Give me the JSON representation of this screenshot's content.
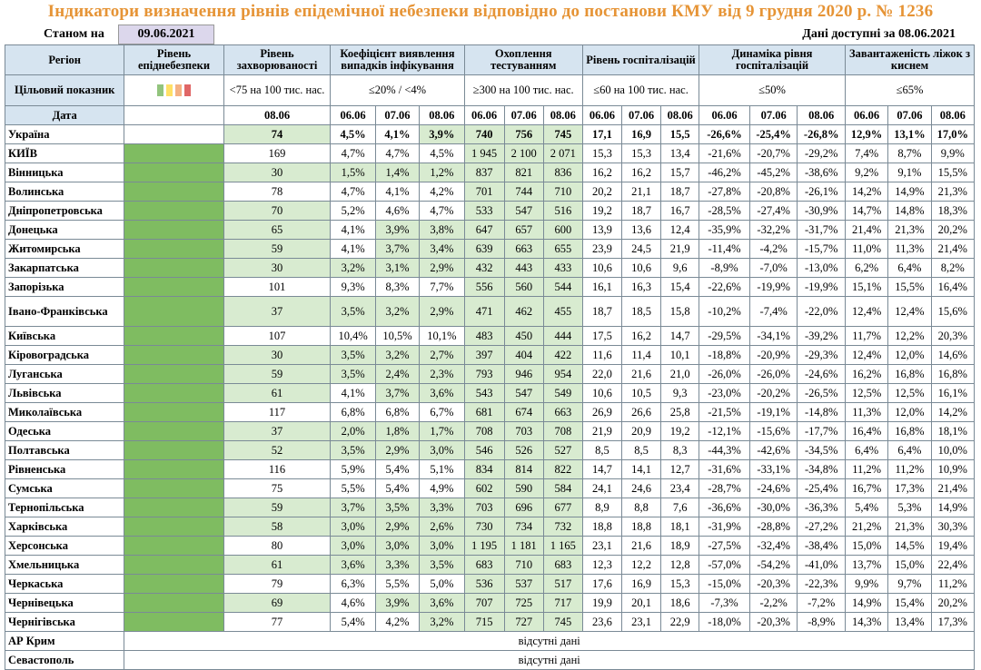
{
  "title": "Індикатори визначення рівнів епідемічної небезпеки відповідно до постанови КМУ від 9 грудня 2020 р. № 1236",
  "as_of": {
    "label": "Станом на",
    "date": "09.06.2021"
  },
  "data_available": {
    "label": "Дані доступні за",
    "date": "08.06.2021"
  },
  "headers": {
    "region": "Регіон",
    "danger_level": "Рівень епіднебезпеки",
    "incidence": "Рівень захворюваності",
    "detection": "Коефіцієнт виявлення випадків інфікування",
    "testing": "Охоплення тестуванням",
    "hospitalization": "Рівень госпіталізацій",
    "hosp_dynamics": "Динаміка рівня госпіталізацій",
    "oxygen": "Завантаженість ліжок з киснем"
  },
  "target_row": {
    "label": "Цільовий показник",
    "incidence": "<75 на 100 тис. нас.",
    "detection": "≤20% / <4%",
    "testing": "≥300 на 100 тис. нас.",
    "hospitalization": "≤60 на 100 тис. нас.",
    "hosp_dynamics": "≤50%",
    "oxygen": "≤65%",
    "swatch_colors": [
      "#92c47d",
      "#ffe066",
      "#f4b183",
      "#e06666"
    ]
  },
  "date_row": {
    "label": "Дата",
    "incidence": "08.06",
    "detection": [
      "06.06",
      "07.06",
      "08.06"
    ],
    "testing": [
      "06.06",
      "07.06",
      "08.06"
    ],
    "hospitalization": [
      "06.06",
      "07.06",
      "08.06"
    ],
    "hosp_dynamics": [
      "06.06",
      "07.06",
      "08.06"
    ],
    "oxygen": [
      "06.06",
      "07.06",
      "08.06"
    ]
  },
  "rows": [
    {
      "region": "Україна",
      "inc": "74",
      "det": [
        "4,5%",
        "4,1%",
        "3,9%"
      ],
      "test": [
        "740",
        "756",
        "745"
      ],
      "hosp": [
        "17,1",
        "16,9",
        "15,5"
      ],
      "dyn": [
        "-26,6%",
        "-25,4%",
        "-26,8%"
      ],
      "oxy": [
        "12,9%",
        "13,1%",
        "17,0%"
      ]
    },
    {
      "region": "КИЇВ",
      "inc": "169",
      "det": [
        "4,7%",
        "4,7%",
        "4,5%"
      ],
      "test": [
        "1 945",
        "2 100",
        "2 071"
      ],
      "hosp": [
        "15,3",
        "15,3",
        "13,4"
      ],
      "dyn": [
        "-21,6%",
        "-20,7%",
        "-29,2%"
      ],
      "oxy": [
        "7,4%",
        "8,7%",
        "9,9%"
      ]
    },
    {
      "region": "Вінницька",
      "inc": "30",
      "det": [
        "1,5%",
        "1,4%",
        "1,2%"
      ],
      "test": [
        "837",
        "821",
        "836"
      ],
      "hosp": [
        "16,2",
        "16,2",
        "15,7"
      ],
      "dyn": [
        "-46,2%",
        "-45,2%",
        "-38,6%"
      ],
      "oxy": [
        "9,2%",
        "9,1%",
        "15,5%"
      ]
    },
    {
      "region": "Волинська",
      "inc": "78",
      "det": [
        "4,7%",
        "4,1%",
        "4,2%"
      ],
      "test": [
        "701",
        "744",
        "710"
      ],
      "hosp": [
        "20,2",
        "21,1",
        "18,7"
      ],
      "dyn": [
        "-27,8%",
        "-20,8%",
        "-26,1%"
      ],
      "oxy": [
        "14,2%",
        "14,9%",
        "21,3%"
      ]
    },
    {
      "region": "Дніпропетровська",
      "inc": "70",
      "det": [
        "5,2%",
        "4,6%",
        "4,7%"
      ],
      "test": [
        "533",
        "547",
        "516"
      ],
      "hosp": [
        "19,2",
        "18,7",
        "16,7"
      ],
      "dyn": [
        "-28,5%",
        "-27,4%",
        "-30,9%"
      ],
      "oxy": [
        "14,7%",
        "14,8%",
        "18,3%"
      ]
    },
    {
      "region": "Донецька",
      "inc": "65",
      "det": [
        "4,1%",
        "3,9%",
        "3,8%"
      ],
      "test": [
        "647",
        "657",
        "600"
      ],
      "hosp": [
        "13,9",
        "13,6",
        "12,4"
      ],
      "dyn": [
        "-35,9%",
        "-32,2%",
        "-31,7%"
      ],
      "oxy": [
        "21,4%",
        "21,3%",
        "20,2%"
      ]
    },
    {
      "region": "Житомирська",
      "inc": "59",
      "det": [
        "4,1%",
        "3,7%",
        "3,4%"
      ],
      "test": [
        "639",
        "663",
        "655"
      ],
      "hosp": [
        "23,9",
        "24,5",
        "21,9"
      ],
      "dyn": [
        "-11,4%",
        "-4,2%",
        "-15,7%"
      ],
      "oxy": [
        "11,0%",
        "11,3%",
        "21,4%"
      ]
    },
    {
      "region": "Закарпатська",
      "inc": "30",
      "det": [
        "3,2%",
        "3,1%",
        "2,9%"
      ],
      "test": [
        "432",
        "443",
        "433"
      ],
      "hosp": [
        "10,6",
        "10,6",
        "9,6"
      ],
      "dyn": [
        "-8,9%",
        "-7,0%",
        "-13,0%"
      ],
      "oxy": [
        "6,2%",
        "6,4%",
        "8,2%"
      ]
    },
    {
      "region": "Запорізька",
      "inc": "101",
      "det": [
        "9,3%",
        "8,3%",
        "7,7%"
      ],
      "test": [
        "556",
        "560",
        "544"
      ],
      "hosp": [
        "16,1",
        "16,3",
        "15,4"
      ],
      "dyn": [
        "-22,6%",
        "-19,9%",
        "-19,9%"
      ],
      "oxy": [
        "15,1%",
        "15,5%",
        "16,4%"
      ]
    },
    {
      "region": "Івано-Франківська",
      "inc": "37",
      "det": [
        "3,5%",
        "3,2%",
        "2,9%"
      ],
      "test": [
        "471",
        "462",
        "455"
      ],
      "hosp": [
        "18,7",
        "18,5",
        "15,8"
      ],
      "dyn": [
        "-10,2%",
        "-7,4%",
        "-22,0%"
      ],
      "oxy": [
        "12,4%",
        "12,4%",
        "15,6%"
      ]
    },
    {
      "region": "Київська",
      "inc": "107",
      "det": [
        "10,4%",
        "10,5%",
        "10,1%"
      ],
      "test": [
        "483",
        "450",
        "444"
      ],
      "hosp": [
        "17,5",
        "16,2",
        "14,7"
      ],
      "dyn": [
        "-29,5%",
        "-34,1%",
        "-39,2%"
      ],
      "oxy": [
        "11,7%",
        "12,2%",
        "20,3%"
      ]
    },
    {
      "region": "Кіровоградська",
      "inc": "30",
      "det": [
        "3,5%",
        "3,2%",
        "2,7%"
      ],
      "test": [
        "397",
        "404",
        "422"
      ],
      "hosp": [
        "11,6",
        "11,4",
        "10,1"
      ],
      "dyn": [
        "-18,8%",
        "-20,9%",
        "-29,3%"
      ],
      "oxy": [
        "12,4%",
        "12,0%",
        "14,6%"
      ]
    },
    {
      "region": "Луганська",
      "inc": "59",
      "det": [
        "3,5%",
        "2,4%",
        "2,3%"
      ],
      "test": [
        "793",
        "946",
        "954"
      ],
      "hosp": [
        "22,0",
        "21,6",
        "21,0"
      ],
      "dyn": [
        "-26,0%",
        "-26,0%",
        "-24,6%"
      ],
      "oxy": [
        "16,2%",
        "16,8%",
        "16,8%"
      ]
    },
    {
      "region": "Львівська",
      "inc": "61",
      "det": [
        "4,1%",
        "3,7%",
        "3,6%"
      ],
      "test": [
        "543",
        "547",
        "549"
      ],
      "hosp": [
        "10,6",
        "10,5",
        "9,3"
      ],
      "dyn": [
        "-23,0%",
        "-20,2%",
        "-26,5%"
      ],
      "oxy": [
        "12,5%",
        "12,5%",
        "16,1%"
      ]
    },
    {
      "region": "Миколаївська",
      "inc": "117",
      "det": [
        "6,8%",
        "6,8%",
        "6,7%"
      ],
      "test": [
        "681",
        "674",
        "663"
      ],
      "hosp": [
        "26,9",
        "26,6",
        "25,8"
      ],
      "dyn": [
        "-21,5%",
        "-19,1%",
        "-14,8%"
      ],
      "oxy": [
        "11,3%",
        "12,0%",
        "14,2%"
      ]
    },
    {
      "region": "Одеська",
      "inc": "37",
      "det": [
        "2,0%",
        "1,8%",
        "1,7%"
      ],
      "test": [
        "708",
        "703",
        "708"
      ],
      "hosp": [
        "21,9",
        "20,9",
        "19,2"
      ],
      "dyn": [
        "-12,1%",
        "-15,6%",
        "-17,7%"
      ],
      "oxy": [
        "16,4%",
        "16,8%",
        "18,1%"
      ]
    },
    {
      "region": "Полтавська",
      "inc": "52",
      "det": [
        "3,5%",
        "2,9%",
        "3,0%"
      ],
      "test": [
        "546",
        "526",
        "527"
      ],
      "hosp": [
        "8,5",
        "8,5",
        "8,3"
      ],
      "dyn": [
        "-44,3%",
        "-42,6%",
        "-34,5%"
      ],
      "oxy": [
        "6,4%",
        "6,4%",
        "10,0%"
      ]
    },
    {
      "region": "Рівненська",
      "inc": "116",
      "det": [
        "5,9%",
        "5,4%",
        "5,1%"
      ],
      "test": [
        "834",
        "814",
        "822"
      ],
      "hosp": [
        "14,7",
        "14,1",
        "12,7"
      ],
      "dyn": [
        "-31,6%",
        "-33,1%",
        "-34,8%"
      ],
      "oxy": [
        "11,2%",
        "11,2%",
        "10,9%"
      ]
    },
    {
      "region": "Сумська",
      "inc": "75",
      "det": [
        "5,5%",
        "5,4%",
        "4,9%"
      ],
      "test": [
        "602",
        "590",
        "584"
      ],
      "hosp": [
        "24,1",
        "24,6",
        "23,4"
      ],
      "dyn": [
        "-28,7%",
        "-24,6%",
        "-25,4%"
      ],
      "oxy": [
        "16,7%",
        "17,3%",
        "21,4%"
      ]
    },
    {
      "region": "Тернопільська",
      "inc": "59",
      "det": [
        "3,7%",
        "3,5%",
        "3,3%"
      ],
      "test": [
        "703",
        "696",
        "677"
      ],
      "hosp": [
        "8,9",
        "8,8",
        "7,6"
      ],
      "dyn": [
        "-36,6%",
        "-30,0%",
        "-36,3%"
      ],
      "oxy": [
        "5,4%",
        "5,3%",
        "14,9%"
      ]
    },
    {
      "region": "Харківська",
      "inc": "58",
      "det": [
        "3,0%",
        "2,9%",
        "2,6%"
      ],
      "test": [
        "730",
        "734",
        "732"
      ],
      "hosp": [
        "18,8",
        "18,8",
        "18,1"
      ],
      "dyn": [
        "-31,9%",
        "-28,8%",
        "-27,2%"
      ],
      "oxy": [
        "21,2%",
        "21,3%",
        "30,3%"
      ]
    },
    {
      "region": "Херсонська",
      "inc": "80",
      "det": [
        "3,0%",
        "3,0%",
        "3,0%"
      ],
      "test": [
        "1 195",
        "1 181",
        "1 165"
      ],
      "hosp": [
        "23,1",
        "21,6",
        "18,9"
      ],
      "dyn": [
        "-27,5%",
        "-32,4%",
        "-38,4%"
      ],
      "oxy": [
        "15,0%",
        "14,5%",
        "19,4%"
      ]
    },
    {
      "region": "Хмельницька",
      "inc": "61",
      "det": [
        "3,6%",
        "3,3%",
        "3,5%"
      ],
      "test": [
        "683",
        "710",
        "683"
      ],
      "hosp": [
        "12,3",
        "12,2",
        "12,8"
      ],
      "dyn": [
        "-57,0%",
        "-54,2%",
        "-41,0%"
      ],
      "oxy": [
        "13,7%",
        "15,0%",
        "22,4%"
      ]
    },
    {
      "region": "Черкаська",
      "inc": "79",
      "det": [
        "6,3%",
        "5,5%",
        "5,0%"
      ],
      "test": [
        "536",
        "537",
        "517"
      ],
      "hosp": [
        "17,6",
        "16,9",
        "15,3"
      ],
      "dyn": [
        "-15,0%",
        "-20,3%",
        "-22,3%"
      ],
      "oxy": [
        "9,9%",
        "9,7%",
        "11,2%"
      ]
    },
    {
      "region": "Чернівецька",
      "inc": "69",
      "det": [
        "4,6%",
        "3,9%",
        "3,6%"
      ],
      "test": [
        "707",
        "725",
        "717"
      ],
      "hosp": [
        "19,9",
        "20,1",
        "18,6"
      ],
      "dyn": [
        "-7,3%",
        "-2,2%",
        "-7,2%"
      ],
      "oxy": [
        "14,9%",
        "15,4%",
        "20,2%"
      ]
    },
    {
      "region": "Чернігівська",
      "inc": "77",
      "det": [
        "5,4%",
        "4,2%",
        "3,2%"
      ],
      "test": [
        "715",
        "727",
        "745"
      ],
      "hosp": [
        "23,6",
        "23,1",
        "22,9"
      ],
      "dyn": [
        "-18,0%",
        "-20,3%",
        "-8,9%"
      ],
      "oxy": [
        "14,3%",
        "13,4%",
        "17,3%"
      ]
    }
  ],
  "missing_rows": [
    {
      "region": "АР Крим",
      "text": "відсутні дані"
    },
    {
      "region": "Севастополь",
      "text": "відсутні дані"
    }
  ],
  "colors": {
    "header_bg": "#d6e4f0",
    "good_light": "#d8ebd0",
    "good_dark": "#7fbc61",
    "title": "#e69436",
    "date_box": "#dcd7ec"
  }
}
